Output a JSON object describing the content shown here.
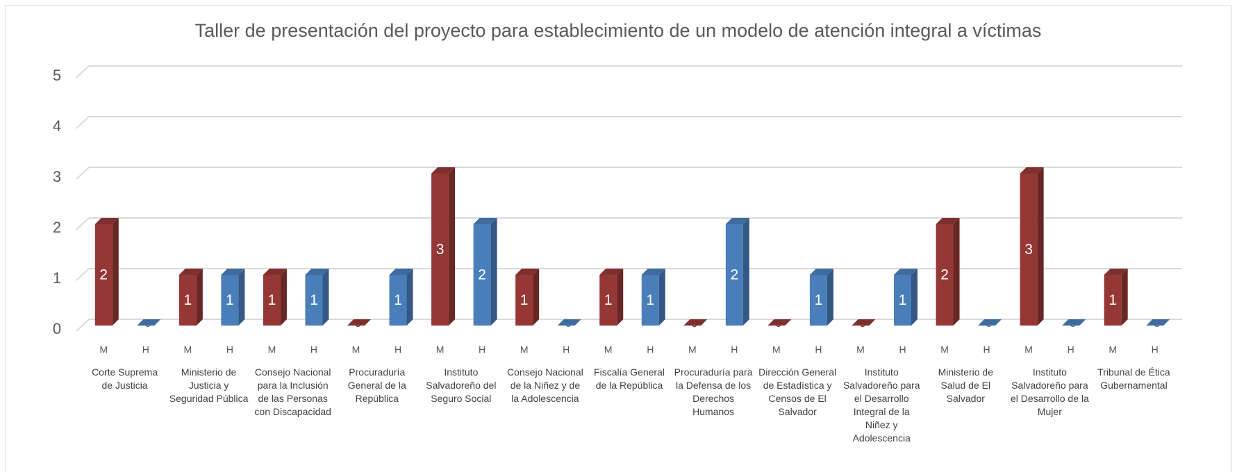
{
  "chart_data": {
    "type": "bar3d",
    "title": "Taller de presentación del proyecto para establecimiento de un modelo de atención integral a víctimas",
    "categories": [
      "Corte Suprema de Justicia",
      "Ministerio de Justicia y Seguridad Pública",
      "Consejo Nacional para la Inclusión de las Personas con Discapacidad",
      "Procuraduría General de la República",
      "Instituto Salvadoreño del Seguro Social",
      "Consejo Nacional de la Niñez y de la Adolescencia",
      "Fiscalía General de la República",
      "Procuraduría para la Defensa de los Derechos Humanos",
      "Dirección General de Estadística y Censos de El Salvador",
      "Instituto Salvadoreño para el Desarrollo Integral de la Niñez y Adolescencia",
      "Ministerio de Salud de El Salvador",
      "Instituto Salvadoreño para el Desarrollo de la Mujer",
      "Tribunal de Ética Gubernamental"
    ],
    "series": [
      {
        "name": "M",
        "color": "#953735",
        "values": [
          2,
          1,
          1,
          0,
          3,
          1,
          1,
          0,
          0,
          0,
          2,
          3,
          1
        ]
      },
      {
        "name": "H",
        "color": "#4a7ebb",
        "values": [
          0,
          1,
          1,
          1,
          2,
          0,
          1,
          2,
          1,
          1,
          0,
          0,
          0
        ]
      }
    ],
    "ylim": [
      0,
      5
    ],
    "yticks": [
      0,
      1,
      2,
      3,
      4,
      5
    ],
    "grid": true
  }
}
